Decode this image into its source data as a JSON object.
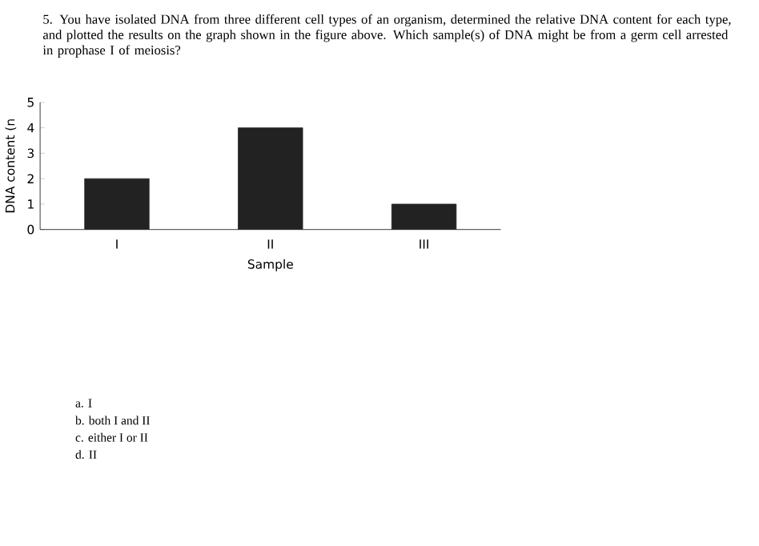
{
  "chart_data": {
    "type": "bar",
    "title": "5. You have isolated DNA from three different cell types of an organism, determined the relative DNA content for each type, and plotted the results on the graph shown in the figure above. Which sample(s) of DNA might be from a germ cell arrested in prophase I of meiosis?",
    "categories": [
      "I",
      "II",
      "III"
    ],
    "values": [
      2,
      4,
      1
    ],
    "color": "#222222",
    "xlabel": "Sample",
    "ylabel": "DNA content (n",
    "ylim": [
      0,
      5
    ],
    "yticks": [
      0,
      1,
      2,
      3,
      4,
      5
    ],
    "annotations": [
      "a. I",
      "b. both I and II",
      "c. either I or II",
      "d. II"
    ]
  }
}
